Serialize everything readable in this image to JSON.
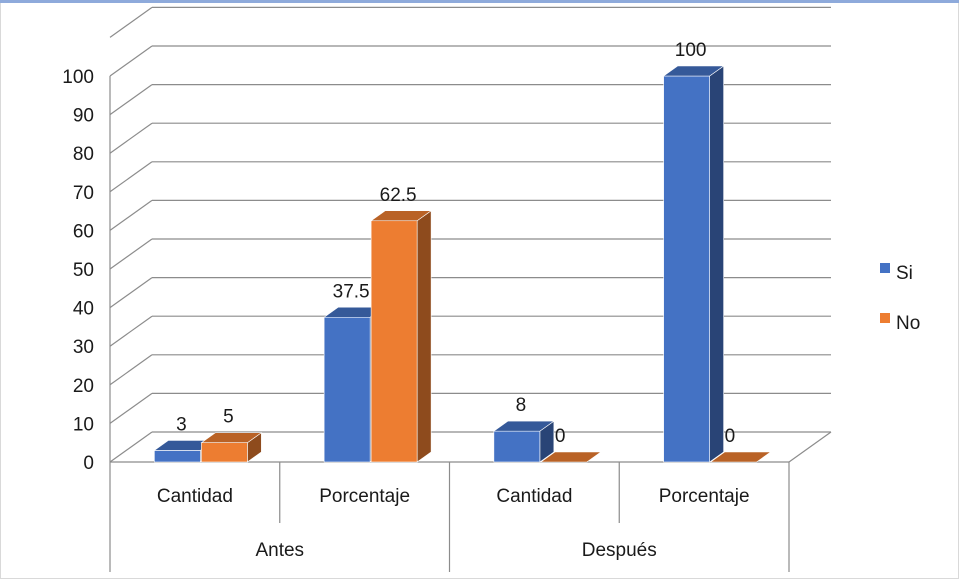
{
  "chart_data": {
    "type": "bar",
    "style": "3d-clustered-column",
    "title": "",
    "xlabel": "",
    "ylabel": "",
    "ylim": [
      0,
      100
    ],
    "ytick_step": 10,
    "yticks": [
      "0",
      "10",
      "20",
      "30",
      "40",
      "50",
      "60",
      "70",
      "80",
      "90",
      "100"
    ],
    "grid": true,
    "legend_position": "right",
    "groups": [
      {
        "label": "Antes",
        "categories": [
          "Cantidad",
          "Porcentaje"
        ]
      },
      {
        "label": "Después",
        "categories": [
          "Cantidad",
          "Porcentaje"
        ]
      }
    ],
    "categories": [
      "Cantidad",
      "Porcentaje",
      "Cantidad",
      "Porcentaje"
    ],
    "series": [
      {
        "name": "Si",
        "values": [
          3,
          37.5,
          8,
          100
        ],
        "labels": [
          "3",
          "37.5",
          "8",
          "100"
        ],
        "color": "#4472c4"
      },
      {
        "name": "No",
        "values": [
          5,
          62.5,
          0,
          0
        ],
        "labels": [
          "5",
          "62.5",
          "0",
          "0"
        ],
        "color": "#ed7d31"
      }
    ]
  }
}
